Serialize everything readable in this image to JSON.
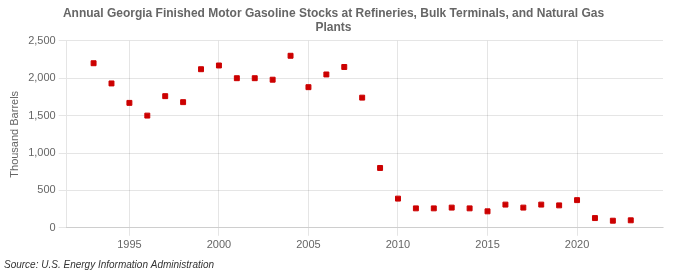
{
  "chart_data": {
    "type": "scatter",
    "title": "Annual Georgia Finished Motor Gasoline Stocks at Refineries, Bulk Terminals, and Natural Gas\nPlants",
    "ylabel": "Thousand Barrels",
    "source": "Source: U.S. Energy Information Administration",
    "x": [
      1993,
      1994,
      1995,
      1996,
      1997,
      1998,
      1999,
      2000,
      2001,
      2002,
      2003,
      2004,
      2005,
      2006,
      2007,
      2008,
      2009,
      2010,
      2011,
      2012,
      2013,
      2014,
      2015,
      2016,
      2017,
      2018,
      2019,
      2020,
      2021,
      2022,
      2023
    ],
    "values": [
      2200,
      1930,
      1670,
      1500,
      1760,
      1680,
      2120,
      2170,
      2000,
      2000,
      1980,
      2300,
      1880,
      2050,
      2150,
      1740,
      800,
      390,
      260,
      260,
      270,
      260,
      220,
      310,
      270,
      310,
      300,
      370,
      130,
      95,
      100
    ],
    "color": "#cc0000",
    "marker": "square",
    "xlim": [
      1991.5,
      2024.8
    ],
    "xticks": [
      1995,
      2000,
      2005,
      2010,
      2015,
      2020
    ],
    "ylim": [
      0,
      2500
    ],
    "yticks": [
      0,
      500,
      {
        "value": 1000,
        "label": "1,000"
      },
      {
        "value": 1500,
        "label": "1,500"
      },
      {
        "value": 2000,
        "label": "2,000"
      },
      {
        "value": 2500,
        "label": "2,500"
      }
    ],
    "grid": true
  }
}
